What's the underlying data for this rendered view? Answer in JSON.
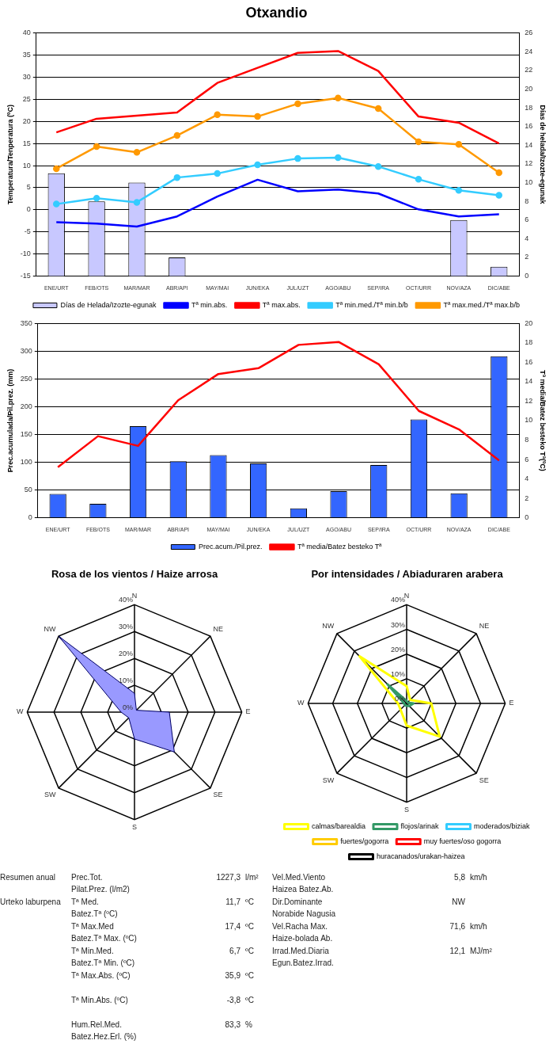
{
  "chart_data": [
    {
      "type": "bar",
      "title": "Otxandio",
      "categories": [
        "ENE/URT",
        "FEB/OTS",
        "MAR/MAR",
        "ABR/API",
        "MAY/MAI",
        "JUN/EKA",
        "JUL/UZT",
        "AGO/ABU",
        "SEP/IRA",
        "OCT/URR",
        "NOV/AZA",
        "DIC/ABE"
      ],
      "ylabel": "Temperatura/Tenperatura (ºC)",
      "y2label": "Días de helada/Izozte-egunak",
      "ylim": [
        -15,
        40
      ],
      "yticks": [
        -15,
        -10,
        -5,
        0,
        5,
        10,
        15,
        20,
        25,
        30,
        35,
        40
      ],
      "y2lim": [
        0,
        26
      ],
      "y2ticks": [
        0,
        2,
        4,
        6,
        8,
        10,
        12,
        14,
        16,
        18,
        20,
        22,
        24,
        26
      ],
      "grid": "y",
      "legend": "bottom",
      "series": [
        {
          "name": "Días de Helada/Izozte-egunak",
          "type": "bar",
          "axis": "y2",
          "color": "#c8c8ff",
          "values": [
            11,
            8,
            10,
            2,
            0,
            0,
            0,
            0,
            0,
            0,
            6,
            1
          ]
        },
        {
          "name": "Tª min.abs.",
          "type": "line",
          "marker": "none",
          "color": "#0000ff",
          "values": [
            -2.8,
            -3.1,
            -3.8,
            -1.5,
            3,
            6.8,
            4.2,
            4.6,
            3.7,
            0.1,
            -1.5,
            -1
          ]
        },
        {
          "name": "Tª max.abs.",
          "type": "line",
          "marker": "none",
          "color": "#ff0000",
          "values": [
            17.5,
            20.6,
            21.3,
            22,
            28.7,
            32.1,
            35.5,
            35.9,
            31.4,
            21.1,
            19.7,
            15
          ]
        },
        {
          "name": "Tª min.med./Tª min.b/b",
          "type": "line",
          "marker": "circle",
          "color": "#33ccff",
          "values": [
            1.3,
            2.6,
            1.7,
            7.3,
            8.2,
            10.2,
            11.6,
            11.8,
            9.8,
            6.9,
            4.4,
            3.3
          ]
        },
        {
          "name": "Tª max.med./Tª max.b/b",
          "type": "line",
          "marker": "circle",
          "color": "#ff9900",
          "values": [
            9.3,
            14.3,
            13,
            16.8,
            21.5,
            21.1,
            24,
            25.3,
            22.9,
            15.4,
            14.8,
            8.4
          ]
        }
      ]
    },
    {
      "type": "bar",
      "categories": [
        "ENE/URT",
        "FEB/OTS",
        "MAR/MAR",
        "ABR/API",
        "MAY/MAI",
        "JUN/EKA",
        "JUL/UZT",
        "AGO/ABU",
        "SEP/IRA",
        "OCT/URR",
        "NOV/AZA",
        "DIC/ABE"
      ],
      "ylabel": "Prec.acumulada/Pil.prez. (mm)",
      "y2label": "Tª media/Batez besteko Tª(ºC)",
      "ylim": [
        0,
        350
      ],
      "yticks": [
        0,
        50,
        100,
        150,
        200,
        250,
        300,
        350
      ],
      "y2lim": [
        0,
        20
      ],
      "y2ticks": [
        0,
        2,
        4,
        6,
        8,
        10,
        12,
        14,
        16,
        18,
        20
      ],
      "grid": "y",
      "legend": "bottom",
      "series": [
        {
          "name": "Prec.acum./Pil.prez.",
          "type": "bar",
          "color": "#3366ff",
          "values": [
            43,
            25,
            165,
            102,
            113,
            98,
            17,
            48,
            95,
            177,
            44,
            291
          ]
        },
        {
          "name": "Tª media/Batez besteko Tª",
          "type": "line",
          "axis": "y2",
          "marker": "none",
          "color": "#ff0000",
          "values": [
            5.2,
            8.4,
            7.4,
            12.1,
            14.8,
            15.4,
            17.8,
            18.1,
            15.8,
            11,
            9.1,
            5.9
          ]
        }
      ]
    },
    {
      "type": "radar",
      "title": "Rosa de los vientos / Haize arrosa",
      "categories": [
        "N",
        "NE",
        "E",
        "SE",
        "S",
        "SW",
        "W",
        "NW"
      ],
      "ylim": [
        0,
        40
      ],
      "yticks": [
        {
          "value": 0,
          "label": "0%"
        },
        {
          "value": 10,
          "label": "10%"
        },
        {
          "value": 20,
          "label": "20%"
        },
        {
          "value": 30,
          "label": "30%"
        },
        {
          "value": 40,
          "label": "40%"
        }
      ],
      "color": "#9999ff",
      "values": [
        7,
        1,
        13,
        21,
        10,
        3,
        5,
        40
      ]
    },
    {
      "type": "radar",
      "title": "Por intensidades / Abiaduraren arabera",
      "categories": [
        "N",
        "NE",
        "E",
        "SE",
        "S",
        "SW",
        "W",
        "NW"
      ],
      "ylim": [
        0,
        40
      ],
      "yticks": [
        {
          "value": 0,
          "label": "0%"
        },
        {
          "value": 10,
          "label": "10%"
        },
        {
          "value": 20,
          "label": "20%"
        },
        {
          "value": 30,
          "label": "30%"
        },
        {
          "value": 40,
          "label": "40%"
        }
      ],
      "legend": "bottom",
      "series": [
        {
          "name": "calmas/barealdia",
          "color": "#ffff00",
          "values": [
            7,
            2,
            10,
            19,
            9,
            3.5,
            3.5,
            27
          ]
        },
        {
          "name": "flojos/arinak",
          "color": "#339966",
          "values": [
            1,
            0.5,
            2.8,
            1.5,
            1,
            1,
            1,
            11
          ]
        },
        {
          "name": "moderados/biziak",
          "color": "#33ccff",
          "values": [
            null,
            null,
            null,
            null,
            null,
            null,
            null,
            null
          ]
        },
        {
          "name": "fuertes/gogorra",
          "color": "#ffcc00",
          "values": [
            null,
            null,
            null,
            null,
            null,
            null,
            null,
            null
          ]
        },
        {
          "name": "muy fuertes/oso gogorra",
          "color": "#ff0000",
          "values": [
            null,
            null,
            null,
            null,
            null,
            null,
            null,
            null
          ]
        },
        {
          "name": "huracanados/urakan-haizea",
          "color": "#000000",
          "values": [
            null,
            null,
            null,
            null,
            null,
            null,
            null,
            null
          ]
        }
      ]
    },
    {
      "type": "other",
      "annotations": [
        "Resumen anual",
        "Urteko laburpena",
        "Prec.Tot.\nPilat.Prez. (l/m2)",
        "1227,3",
        "l/m²",
        "Vel.Med.Viento\nHaizea Batez.Ab.",
        "5,8",
        "km/h",
        "Tª Med.\nBatez.Tª (ºC)",
        "11,7",
        "ºC",
        "Dir.Dominante\nNorabide Nagusia",
        "NW",
        "Tª Max.Med\nBatez.Tª Max. (ºC)",
        "17,4",
        "ºC",
        "Vel.Racha Max.\nHaize-bolada Ab.",
        "71,6",
        "km/h",
        "Tª Min.Med.\nBatez.Tª Min. (ºC)",
        "6,7",
        "ºC",
        "Irrad.Med.Diaria\nEgun.Batez.Irrad.",
        "12,1",
        "MJ/m²",
        "Tª Max.Abs. (ºC)",
        "35,9",
        "ºC",
        "Tª Min.Abs. (ºC)",
        "-3,8",
        "ºC",
        "Hum.Rel.Med.\nBatez.Hez.Erl. (%)",
        "83,3",
        "%"
      ]
    }
  ]
}
